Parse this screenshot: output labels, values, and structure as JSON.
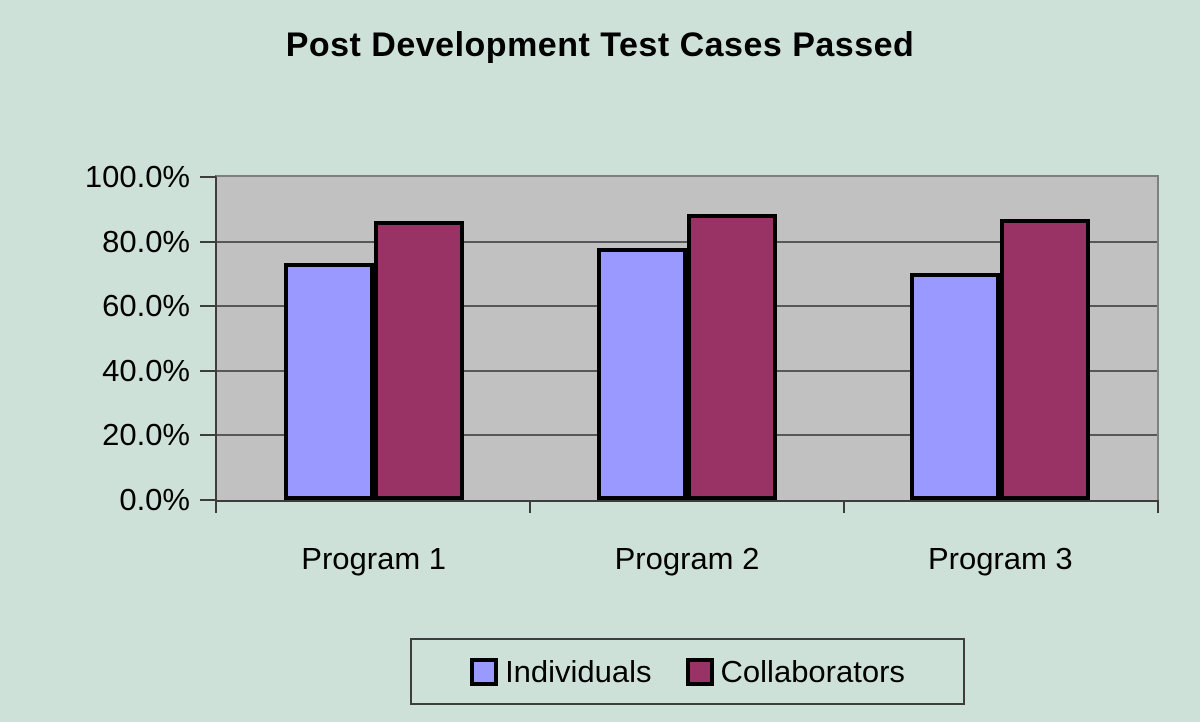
{
  "title": "Post Development Test Cases Passed",
  "colors": {
    "page_background": "#cde1d9",
    "plot_background": "#c1c1c1",
    "plot_border_light": "#7f7f7f",
    "axis_dark": "#3d3d3d",
    "gridline": "#585858",
    "bar_outline": "#000000",
    "text": "#000000",
    "series_individuals": "#9999ff",
    "series_collaborators": "#993366"
  },
  "chart_data": {
    "type": "bar",
    "title": "Post Development Test Cases Passed",
    "categories": [
      "Program 1",
      "Program 2",
      "Program 3"
    ],
    "series": [
      {
        "name": "Individuals",
        "color": "#9999ff",
        "values": [
          73.4,
          78.1,
          70.4
        ]
      },
      {
        "name": "Collaborators",
        "color": "#993366",
        "values": [
          86.4,
          88.6,
          87.1
        ]
      }
    ],
    "xlabel": "",
    "ylabel": "",
    "ylim": [
      0,
      100
    ],
    "ytick_step": 20,
    "ytick_labels": [
      "0.0%",
      "20.0%",
      "40.0%",
      "60.0%",
      "80.0%",
      "100.0%"
    ],
    "grid": true,
    "legend_position": "bottom-center"
  },
  "legend": {
    "items": [
      {
        "label": "Individuals",
        "color": "#9999ff"
      },
      {
        "label": "Collaborators",
        "color": "#993366"
      }
    ]
  }
}
